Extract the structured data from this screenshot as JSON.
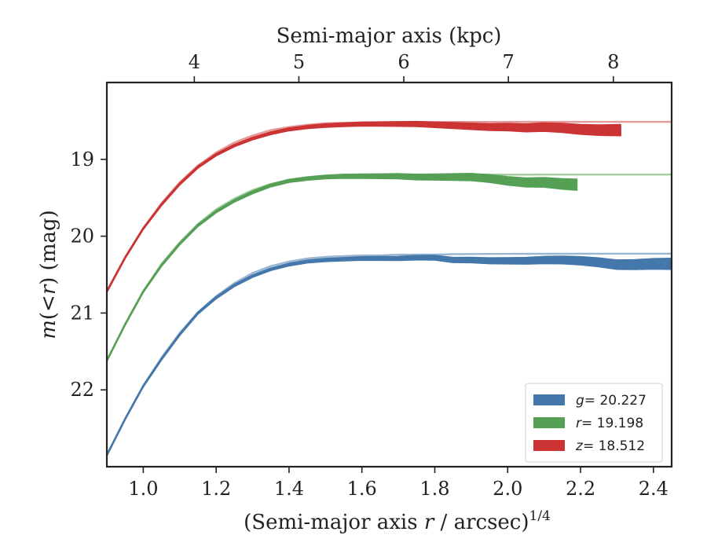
{
  "chart_data": {
    "type": "line",
    "xlabel_prefix": "(Semi-major axis ",
    "xlabel_var": "r",
    "xlabel_suffix": " / arcsec)",
    "xlabel_exp": "1/4",
    "x2label": "Semi-major axis (kpc)",
    "ylabel_var": "m",
    "ylabel_mid": "(<",
    "ylabel_var2": "r",
    "ylabel_suffix": ") (mag)",
    "xlim": [
      0.9,
      2.45
    ],
    "ylim": [
      23.0,
      18.0
    ],
    "y_inverted": true,
    "xticks": [
      1.0,
      1.2,
      1.4,
      1.6,
      1.8,
      2.0,
      2.2,
      2.4
    ],
    "xtick_labels": [
      "1.0",
      "1.2",
      "1.4",
      "1.6",
      "1.8",
      "2.0",
      "2.2",
      "2.4"
    ],
    "yticks": [
      19,
      20,
      21,
      22
    ],
    "ytick_labels": [
      "19",
      "20",
      "21",
      "22"
    ],
    "x2ticks": [
      {
        "label": "4",
        "x": 1.14
      },
      {
        "label": "5",
        "x": 1.427
      },
      {
        "label": "6",
        "x": 1.715
      },
      {
        "label": "7",
        "x": 2.002
      },
      {
        "label": "8",
        "x": 2.29
      }
    ],
    "legend_position": "bottom-right",
    "series": [
      {
        "name_var": "g",
        "name_value": "= 20.227",
        "asymptote": 20.227,
        "color": "#4477aa",
        "light_color": "#9ab6d2",
        "x": [
          0.9,
          0.95,
          1.0,
          1.05,
          1.1,
          1.15,
          1.2,
          1.25,
          1.3,
          1.35,
          1.4,
          1.45,
          1.5,
          1.55,
          1.6,
          1.65,
          1.7,
          1.75,
          1.8,
          1.85,
          1.9,
          1.95,
          2.0,
          2.05,
          2.1,
          2.15,
          2.2,
          2.25,
          2.3,
          2.35,
          2.4,
          2.45
        ],
        "y": [
          22.85,
          22.38,
          21.95,
          21.6,
          21.28,
          21.0,
          20.8,
          20.64,
          20.52,
          20.43,
          20.37,
          20.33,
          20.31,
          20.3,
          20.29,
          20.29,
          20.29,
          20.28,
          20.28,
          20.31,
          20.31,
          20.32,
          20.32,
          20.32,
          20.31,
          20.31,
          20.32,
          20.34,
          20.37,
          20.37,
          20.36,
          20.36
        ],
        "fit_y": [
          22.85,
          22.38,
          21.95,
          21.58,
          21.26,
          20.99,
          20.78,
          20.61,
          20.48,
          20.39,
          20.33,
          20.29,
          20.27,
          20.26,
          20.25,
          20.25,
          20.24,
          20.24,
          20.24,
          20.234,
          20.232,
          20.231,
          20.23,
          20.229,
          20.229,
          20.228,
          20.228,
          20.228,
          20.227,
          20.227,
          20.227,
          20.227
        ]
      },
      {
        "name_var": "r",
        "name_value": "= 19.198",
        "asymptote": 19.198,
        "color": "#55a055",
        "light_color": "#9fcb9f",
        "x": [
          0.9,
          0.95,
          1.0,
          1.05,
          1.1,
          1.15,
          1.2,
          1.25,
          1.3,
          1.35,
          1.4,
          1.45,
          1.5,
          1.55,
          1.6,
          1.65,
          1.7,
          1.75,
          1.8,
          1.85,
          1.9,
          1.95,
          2.0,
          2.05,
          2.1,
          2.15,
          2.19
        ],
        "y": [
          21.62,
          21.15,
          20.72,
          20.38,
          20.1,
          19.86,
          19.68,
          19.54,
          19.43,
          19.34,
          19.28,
          19.25,
          19.23,
          19.22,
          19.22,
          19.22,
          19.22,
          19.23,
          19.23,
          19.23,
          19.23,
          19.25,
          19.28,
          19.3,
          19.3,
          19.32,
          19.33
        ],
        "fit_y": [
          21.62,
          21.15,
          20.72,
          20.36,
          20.08,
          19.84,
          19.65,
          19.51,
          19.4,
          19.32,
          19.27,
          19.24,
          19.22,
          19.21,
          19.21,
          19.205,
          19.203,
          19.202,
          19.201,
          19.2,
          19.2,
          19.199,
          19.199,
          19.199,
          19.198,
          19.198,
          19.198
        ]
      },
      {
        "name_var": "z",
        "name_value": "= 18.512",
        "asymptote": 18.512,
        "color": "#cc3333",
        "light_color": "#e59a9a",
        "x": [
          0.9,
          0.95,
          1.0,
          1.05,
          1.1,
          1.15,
          1.2,
          1.25,
          1.3,
          1.35,
          1.4,
          1.45,
          1.5,
          1.55,
          1.6,
          1.65,
          1.7,
          1.75,
          1.8,
          1.85,
          1.9,
          1.95,
          2.0,
          2.05,
          2.1,
          2.15,
          2.2,
          2.25,
          2.31
        ],
        "y": [
          20.72,
          20.28,
          19.9,
          19.59,
          19.32,
          19.1,
          18.94,
          18.82,
          18.73,
          18.66,
          18.61,
          18.58,
          18.56,
          18.55,
          18.54,
          18.54,
          18.54,
          18.54,
          18.55,
          18.56,
          18.57,
          18.58,
          18.58,
          18.59,
          18.58,
          18.59,
          18.61,
          18.62,
          18.62
        ],
        "fit_y": [
          20.72,
          20.28,
          19.9,
          19.57,
          19.3,
          19.08,
          18.91,
          18.78,
          18.69,
          18.62,
          18.58,
          18.55,
          18.53,
          18.525,
          18.52,
          18.518,
          18.516,
          18.515,
          18.514,
          18.513,
          18.513,
          18.513,
          18.512,
          18.512,
          18.512,
          18.512,
          18.512,
          18.512,
          18.512
        ]
      }
    ]
  }
}
